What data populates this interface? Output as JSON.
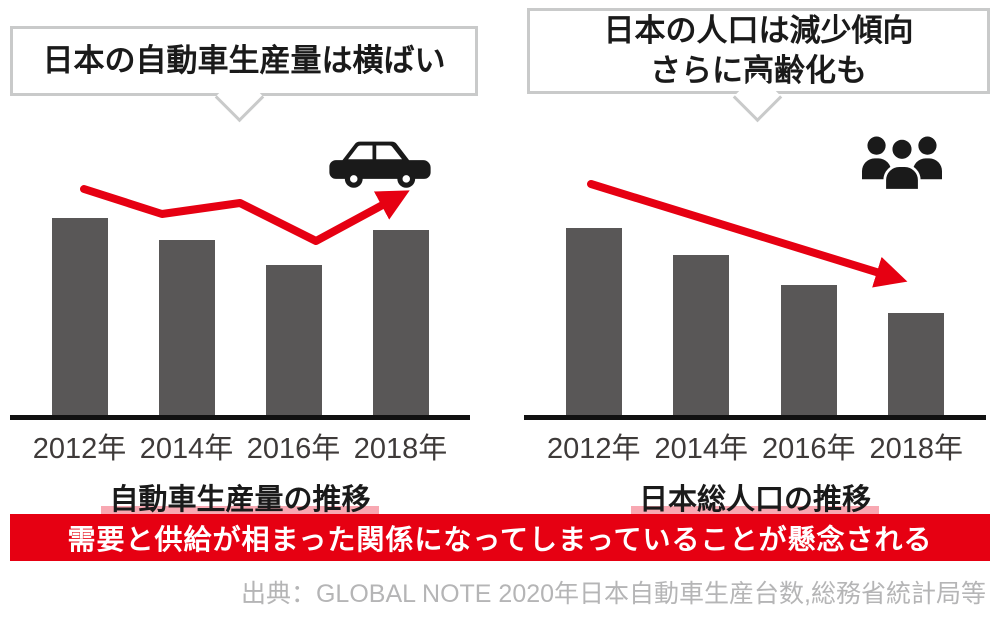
{
  "bubbles": {
    "left": {
      "lines": [
        "日本の自動車生産量は横ばい"
      ]
    },
    "right": {
      "lines": [
        "日本の人口は減少傾向",
        "さらに高齢化も"
      ]
    }
  },
  "icons": {
    "left": "car-icon",
    "right": "people-icon"
  },
  "banner": {
    "text": "需要と供給が相まった関係になってしまっていることが懸念される"
  },
  "source": {
    "text": "出典：GLOBAL NOTE 2020年日本自動車生産台数,総務省統計局等"
  },
  "colors": {
    "bar": "#595757",
    "accent_red": "#e60012",
    "caption_highlight_pink": "#f8a8b2",
    "bubble_border": "#c9caca",
    "source_gray": "#b5b5b6",
    "banner_text": "#ffffff"
  },
  "chart_data": [
    {
      "type": "bar",
      "title": "自動車生産量の推移",
      "categories": [
        "2012年",
        "2014年",
        "2016年",
        "2018年"
      ],
      "values": [
        100,
        89,
        76,
        94
      ],
      "ylim": [
        0,
        100
      ],
      "xlabel": "",
      "ylabel": "",
      "grid": false,
      "y_axis_labels_shown": false,
      "legend": "none",
      "annotation": "日本の自動車生産量は横ばい",
      "trend_overlay": "red zigzag arrow, roughly flat, ending pointing up-right"
    },
    {
      "type": "bar",
      "title": "日本総人口の推移",
      "categories": [
        "2012年",
        "2014年",
        "2016年",
        "2018年"
      ],
      "values": [
        95,
        81,
        66,
        52
      ],
      "ylim": [
        0,
        100
      ],
      "xlabel": "",
      "ylabel": "",
      "grid": false,
      "y_axis_labels_shown": false,
      "legend": "none",
      "annotation": "日本の人口は減少傾向 さらに高齢化も",
      "trend_overlay": "red straight arrow declining down to the right"
    }
  ]
}
